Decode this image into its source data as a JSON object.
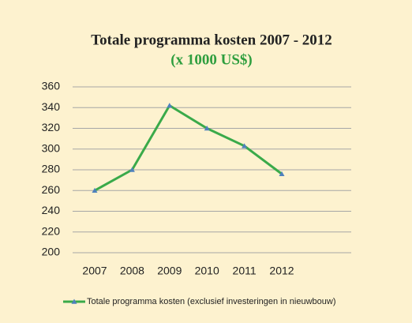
{
  "chart_data": {
    "type": "line",
    "title": "Totale programma kosten 2007 - 2012",
    "subtitle": "(x 1000 US$)",
    "subtitle_color": "#2e9e3e",
    "categories": [
      "2007",
      "2008",
      "2009",
      "2010",
      "2011",
      "2012"
    ],
    "series": [
      {
        "name": "Totale programma kosten (exclusief investeringen in nieuwbouw)",
        "color": "#3aaa4a",
        "marker_color": "#4f81bd",
        "values": [
          260,
          280,
          342,
          320,
          303,
          276
        ]
      }
    ],
    "ylim": [
      200,
      360
    ],
    "yticks": [
      200,
      220,
      240,
      260,
      280,
      300,
      320,
      340,
      360
    ],
    "grid": true,
    "legend": "bottom"
  }
}
